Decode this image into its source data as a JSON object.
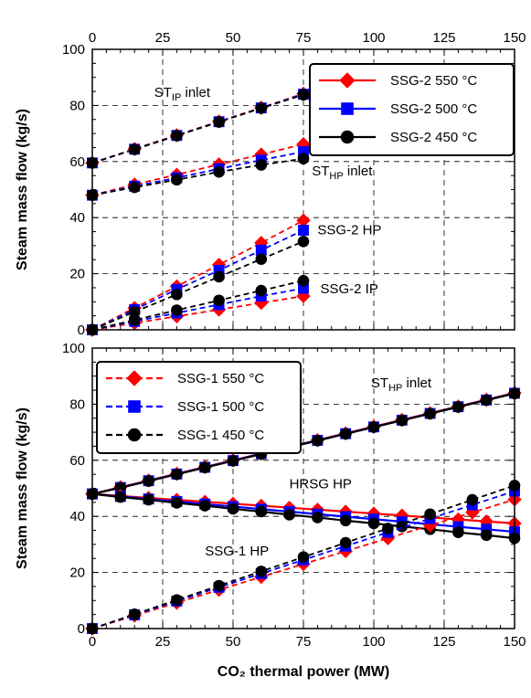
{
  "chart_data": [
    {
      "type": "line",
      "panel": "top",
      "xlabel": "",
      "ylabel": "Steam mass flow (kg/s)",
      "xlim": [
        0,
        150
      ],
      "ylim": [
        0,
        100
      ],
      "xticks": [
        "0",
        "25",
        "50",
        "75",
        "100",
        "125",
        "150"
      ],
      "yticks": [
        "0",
        "20",
        "40",
        "60",
        "80",
        "100"
      ],
      "x_tick_position": "top",
      "grid": true,
      "legend": {
        "placement": "top-right",
        "entries": [
          {
            "label": "SSG-2 550 °C",
            "color": "#ff0000",
            "marker": "diamond",
            "dash": "solid"
          },
          {
            "label": "SSG-2 500 °C",
            "color": "#0000ff",
            "marker": "square",
            "dash": "solid"
          },
          {
            "label": "SSG-2 450 °C",
            "color": "#000000",
            "marker": "circle",
            "dash": "solid"
          }
        ]
      },
      "annotations": [
        {
          "text": "ST",
          "sub": "IP",
          "suffix": " inlet",
          "x": 22,
          "y": 83
        },
        {
          "text": "ST",
          "sub": "HP",
          "suffix": " inlet",
          "x": 78,
          "y": 55
        },
        {
          "text": "SSG-2 HP",
          "suffix": "",
          "x": 80,
          "y": 34
        },
        {
          "text": "SSG-2 IP",
          "suffix": "",
          "x": 81,
          "y": 13
        }
      ],
      "series": [
        {
          "group": "ST IP inlet",
          "style": "550",
          "x": [
            0,
            15,
            30,
            45,
            60,
            75
          ],
          "y": [
            59.5,
            64.5,
            69.4,
            74.3,
            79.2,
            84.2
          ]
        },
        {
          "group": "ST IP inlet",
          "style": "500",
          "x": [
            0,
            15,
            30,
            45,
            60,
            75
          ],
          "y": [
            59.5,
            64.4,
            69.3,
            74.2,
            79.1,
            84.0
          ]
        },
        {
          "group": "ST IP inlet",
          "style": "450",
          "x": [
            0,
            15,
            30,
            45,
            60,
            75
          ],
          "y": [
            59.5,
            64.3,
            69.2,
            74.1,
            79.0,
            83.8
          ]
        },
        {
          "group": "ST HP inlet",
          "style": "550",
          "x": [
            0,
            15,
            30,
            45,
            60,
            75
          ],
          "y": [
            48,
            51.8,
            55.3,
            59.0,
            62.5,
            66.2
          ]
        },
        {
          "group": "ST HP inlet",
          "style": "500",
          "x": [
            0,
            15,
            30,
            45,
            60,
            75
          ],
          "y": [
            48,
            51.2,
            54.2,
            57.4,
            60.5,
            63.5
          ]
        },
        {
          "group": "ST HP inlet",
          "style": "450",
          "x": [
            0,
            15,
            30,
            45,
            60,
            75
          ],
          "y": [
            48,
            50.8,
            53.5,
            56.3,
            58.8,
            61.0
          ]
        },
        {
          "group": "SSG-2 HP",
          "style": "550",
          "x": [
            0,
            15,
            30,
            45,
            60,
            75
          ],
          "y": [
            0,
            7.8,
            15.5,
            23.2,
            31.0,
            39.0
          ]
        },
        {
          "group": "SSG-2 HP",
          "style": "500",
          "x": [
            0,
            15,
            30,
            45,
            60,
            75
          ],
          "y": [
            0,
            7.2,
            14.4,
            21.2,
            28.4,
            35.5
          ]
        },
        {
          "group": "SSG-2 HP",
          "style": "450",
          "x": [
            0,
            15,
            30,
            45,
            60,
            75
          ],
          "y": [
            0,
            6.4,
            12.6,
            18.9,
            25.2,
            31.5
          ]
        },
        {
          "group": "SSG-2 IP",
          "style": "550",
          "x": [
            0,
            15,
            30,
            45,
            60,
            75
          ],
          "y": [
            0,
            2.4,
            4.8,
            7.2,
            9.6,
            12.0
          ]
        },
        {
          "group": "SSG-2 IP",
          "style": "500",
          "x": [
            0,
            15,
            30,
            45,
            60,
            75
          ],
          "y": [
            0,
            3.0,
            6.0,
            9.0,
            12.0,
            14.8
          ]
        },
        {
          "group": "SSG-2 IP",
          "style": "450",
          "x": [
            0,
            15,
            30,
            45,
            60,
            75
          ],
          "y": [
            0,
            3.5,
            7.0,
            10.5,
            14.0,
            17.5
          ]
        }
      ]
    },
    {
      "type": "line",
      "panel": "bottom",
      "xlabel": "CO₂ thermal power (MW)",
      "ylabel": "Steam mass flow (kg/s)",
      "xlim": [
        0,
        150
      ],
      "ylim": [
        0,
        100
      ],
      "xticks": [
        "0",
        "25",
        "50",
        "75",
        "100",
        "125",
        "150"
      ],
      "yticks": [
        "0",
        "20",
        "40",
        "60",
        "80",
        "100"
      ],
      "grid": true,
      "legend": {
        "placement": "top-left",
        "entries": [
          {
            "label": "SSG-1 550 °C",
            "color": "#ff0000",
            "marker": "diamond",
            "dash": "dashed"
          },
          {
            "label": "SSG-1 500 °C",
            "color": "#0000ff",
            "marker": "square",
            "dash": "dashed"
          },
          {
            "label": "SSG-1 450 °C",
            "color": "#000000",
            "marker": "circle",
            "dash": "dashed"
          }
        ]
      },
      "annotations": [
        {
          "text": "ST",
          "sub": "HP",
          "suffix": " inlet",
          "x": 99,
          "y": 86
        },
        {
          "text": "HRSG HP",
          "suffix": "",
          "x": 70,
          "y": 50
        },
        {
          "text": "SSG-1 HP",
          "suffix": "",
          "x": 40,
          "y": 26
        }
      ],
      "series": [
        {
          "group": "ST HP inlet",
          "style": "550",
          "dash": "solid",
          "x": [
            0,
            10,
            20,
            30,
            40,
            50,
            60,
            70,
            80,
            90,
            100,
            110,
            120,
            130,
            140,
            150
          ],
          "y": [
            48,
            50.4,
            52.8,
            55.2,
            57.6,
            60.0,
            62.4,
            64.8,
            67.2,
            69.6,
            72.0,
            74.4,
            76.8,
            79.2,
            81.6,
            84.0
          ]
        },
        {
          "group": "ST HP inlet",
          "style": "500",
          "dash": "solid",
          "x": [
            0,
            10,
            20,
            30,
            40,
            50,
            60,
            70,
            80,
            90,
            100,
            110,
            120,
            130,
            140,
            150
          ],
          "y": [
            48,
            50.3,
            52.7,
            55.1,
            57.5,
            59.9,
            62.3,
            64.7,
            67.1,
            69.5,
            71.9,
            74.3,
            76.7,
            79.1,
            81.5,
            83.9
          ]
        },
        {
          "group": "ST HP inlet",
          "style": "450",
          "dash": "solid",
          "x": [
            0,
            10,
            20,
            30,
            40,
            50,
            60,
            70,
            80,
            90,
            100,
            110,
            120,
            130,
            140,
            150
          ],
          "y": [
            48,
            50.2,
            52.6,
            55.0,
            57.4,
            59.8,
            62.2,
            64.6,
            67.0,
            69.4,
            71.8,
            74.2,
            76.6,
            79.0,
            81.4,
            83.8
          ]
        },
        {
          "group": "HRSG HP",
          "style": "550",
          "dash": "solid",
          "x": [
            0,
            10,
            20,
            30,
            40,
            50,
            60,
            70,
            80,
            90,
            100,
            110,
            120,
            130,
            140,
            150
          ],
          "y": [
            48,
            47.3,
            46.6,
            45.9,
            45.2,
            44.5,
            43.8,
            43.1,
            42.4,
            41.7,
            41.0,
            40.3,
            39.6,
            38.9,
            38.2,
            37.5
          ]
        },
        {
          "group": "HRSG HP",
          "style": "500",
          "dash": "solid",
          "x": [
            0,
            10,
            20,
            30,
            40,
            50,
            60,
            70,
            80,
            90,
            100,
            110,
            120,
            130,
            140,
            150
          ],
          "y": [
            48,
            47.1,
            46.2,
            45.3,
            44.4,
            43.5,
            42.6,
            41.7,
            40.8,
            39.9,
            39.0,
            38.1,
            37.2,
            36.3,
            35.4,
            34.5
          ]
        },
        {
          "group": "HRSG HP",
          "style": "450",
          "dash": "solid",
          "x": [
            0,
            10,
            20,
            30,
            40,
            50,
            60,
            70,
            80,
            90,
            100,
            110,
            120,
            130,
            140,
            150
          ],
          "y": [
            48,
            46.9,
            45.9,
            44.8,
            43.8,
            42.7,
            41.7,
            40.6,
            39.6,
            38.5,
            37.5,
            36.4,
            35.4,
            34.3,
            33.3,
            32.2
          ]
        },
        {
          "group": "SSG-1 HP",
          "style": "550",
          "dash": "dashed",
          "x": [
            0,
            15,
            30,
            45,
            60,
            75,
            90,
            105,
            120,
            135,
            150
          ],
          "y": [
            0,
            4.6,
            9.2,
            13.8,
            18.4,
            23.0,
            27.6,
            32.2,
            36.8,
            41.4,
            46.0
          ]
        },
        {
          "group": "SSG-1 HP",
          "style": "500",
          "dash": "dashed",
          "x": [
            0,
            15,
            30,
            45,
            60,
            75,
            90,
            105,
            120,
            135,
            150
          ],
          "y": [
            0,
            4.9,
            9.8,
            14.7,
            19.6,
            24.5,
            29.4,
            34.3,
            39.2,
            44.1,
            49.0
          ]
        },
        {
          "group": "SSG-1 HP",
          "style": "450",
          "dash": "dashed",
          "x": [
            0,
            15,
            30,
            45,
            60,
            75,
            90,
            105,
            120,
            135,
            150
          ],
          "y": [
            0,
            5.1,
            10.2,
            15.3,
            20.4,
            25.5,
            30.6,
            35.7,
            40.8,
            45.9,
            51.0
          ]
        }
      ]
    }
  ],
  "styles": {
    "550": {
      "color": "#ff0000",
      "marker": "diamond"
    },
    "500": {
      "color": "#0000ff",
      "marker": "square"
    },
    "450": {
      "color": "#000000",
      "marker": "circle"
    }
  }
}
